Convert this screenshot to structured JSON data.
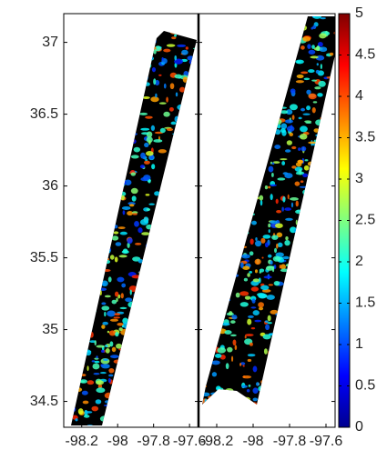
{
  "chart_data": [
    {
      "type": "swath",
      "ylim": [
        34.32,
        37.2
      ],
      "yticks": [
        34.5,
        35,
        35.5,
        36,
        36.5,
        37
      ],
      "xlim": [
        -98.3,
        -97.55
      ],
      "xticks": [
        -98.2,
        -98,
        -97.8,
        -97.6
      ]
    },
    {
      "type": "swath",
      "ylim": [
        34.32,
        37.2
      ],
      "xlim": [
        -98.3,
        -97.55
      ],
      "xticks": [
        -98.2,
        -98,
        -97.8,
        -97.6
      ]
    },
    {
      "type": "colorbar",
      "ylim": [
        0,
        5
      ],
      "yticks": [
        0,
        0.5,
        1,
        1.5,
        2,
        2.5,
        3,
        3.5,
        4,
        4.5,
        5
      ]
    }
  ]
}
